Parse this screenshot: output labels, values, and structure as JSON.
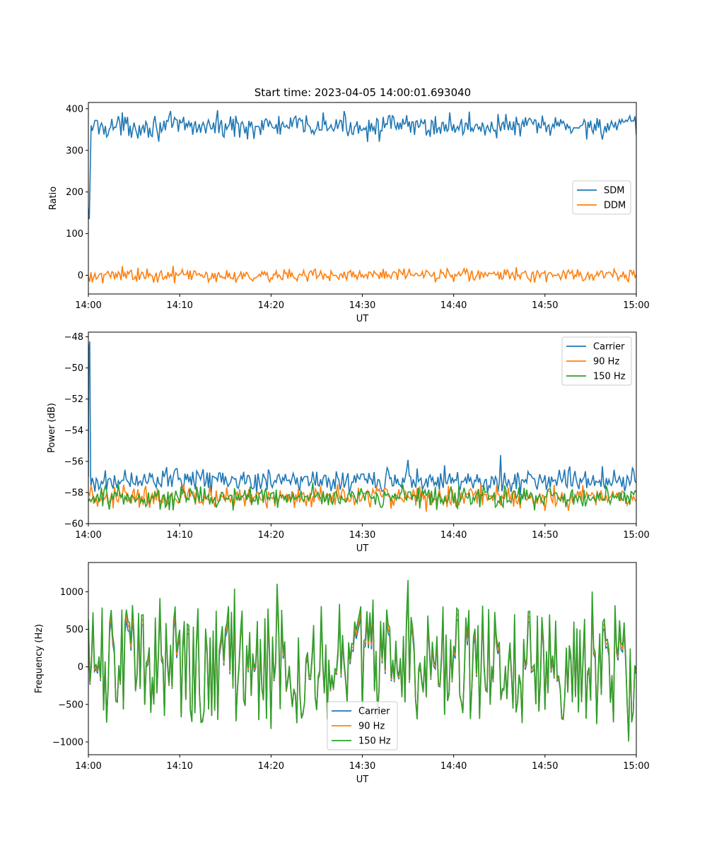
{
  "figure_title": "Start time: 2023-04-05 14:00:01.693040",
  "chart_data": [
    {
      "type": "line",
      "title": "Start time: 2023-04-05 14:00:01.693040",
      "xlabel": "UT",
      "ylabel": "Ratio",
      "xlim_minutes": [
        0,
        60
      ],
      "ylim": [
        -45,
        415
      ],
      "xticks": [
        {
          "value": 0,
          "label": "14:00"
        },
        {
          "value": 10,
          "label": "14:10"
        },
        {
          "value": 20,
          "label": "14:20"
        },
        {
          "value": 30,
          "label": "14:30"
        },
        {
          "value": 40,
          "label": "14:40"
        },
        {
          "value": 50,
          "label": "14:50"
        },
        {
          "value": 60,
          "label": "15:00"
        }
      ],
      "yticks": [
        {
          "value": 0,
          "label": "0"
        },
        {
          "value": 100,
          "label": "100"
        },
        {
          "value": 200,
          "label": "200"
        },
        {
          "value": 300,
          "label": "300"
        },
        {
          "value": 400,
          "label": "400"
        }
      ],
      "grid": false,
      "legend_position": "center-right",
      "series": [
        {
          "name": "SDM",
          "color": "#1f77b4",
          "profile": {
            "mean": 358,
            "amp": 14,
            "start": [
              [
                0,
                160
              ],
              [
                0.1,
                135
              ],
              [
                0.3,
                360
              ]
            ]
          }
        },
        {
          "name": "DDM",
          "color": "#ff7f0e",
          "profile": {
            "mean": 0,
            "amp": 8
          }
        }
      ]
    },
    {
      "type": "line",
      "title": "",
      "xlabel": "UT",
      "ylabel": "Power (dB)",
      "xlim_minutes": [
        0,
        60
      ],
      "ylim": [
        -60,
        -47.7
      ],
      "xticks": [
        {
          "value": 0,
          "label": "14:00"
        },
        {
          "value": 10,
          "label": "14:10"
        },
        {
          "value": 20,
          "label": "14:20"
        },
        {
          "value": 30,
          "label": "14:30"
        },
        {
          "value": 40,
          "label": "14:40"
        },
        {
          "value": 50,
          "label": "14:50"
        },
        {
          "value": 60,
          "label": "15:00"
        }
      ],
      "yticks": [
        {
          "value": -60,
          "label": "−60"
        },
        {
          "value": -58,
          "label": "−58"
        },
        {
          "value": -56,
          "label": "−56"
        },
        {
          "value": -54,
          "label": "−54"
        },
        {
          "value": -52,
          "label": "−52"
        },
        {
          "value": -50,
          "label": "−50"
        },
        {
          "value": -48,
          "label": "−48"
        }
      ],
      "grid": false,
      "legend_position": "top-right",
      "series": [
        {
          "name": "Carrier",
          "color": "#1f77b4",
          "profile": {
            "mean": -57.2,
            "amp": 0.35,
            "start": [
              [
                0,
                -57.0
              ],
              [
                0.05,
                -48.9
              ],
              [
                0.15,
                -48.3
              ],
              [
                0.25,
                -56.9
              ]
            ],
            "spikes": [
              [
                35,
                -55.9
              ],
              [
                45.2,
                -55.6
              ]
            ]
          }
        },
        {
          "name": "90 Hz",
          "color": "#ff7f0e",
          "profile": {
            "mean": -58.3,
            "amp": 0.35
          }
        },
        {
          "name": "150 Hz",
          "color": "#2ca02c",
          "profile": {
            "mean": -58.3,
            "amp": 0.35
          }
        }
      ]
    },
    {
      "type": "line",
      "title": "",
      "xlabel": "UT",
      "ylabel": "Frequency (Hz)",
      "xlim_minutes": [
        0,
        60
      ],
      "ylim": [
        -1170,
        1390
      ],
      "xticks": [
        {
          "value": 0,
          "label": "14:00"
        },
        {
          "value": 10,
          "label": "14:10"
        },
        {
          "value": 20,
          "label": "14:20"
        },
        {
          "value": 30,
          "label": "14:30"
        },
        {
          "value": 40,
          "label": "14:40"
        },
        {
          "value": 50,
          "label": "14:50"
        },
        {
          "value": 60,
          "label": "15:00"
        }
      ],
      "yticks": [
        {
          "value": -1000,
          "label": "−1000"
        },
        {
          "value": -500,
          "label": "−500"
        },
        {
          "value": 0,
          "label": "0"
        },
        {
          "value": 500,
          "label": "500"
        },
        {
          "value": 1000,
          "label": "1000"
        }
      ],
      "grid": false,
      "legend_position": "bottom-center",
      "series": [
        {
          "name": "Carrier",
          "color": "#1f77b4",
          "profile": {
            "mean": 0,
            "amp": 430,
            "offset": -30
          }
        },
        {
          "name": "90 Hz",
          "color": "#ff7f0e",
          "profile": {
            "mean": 0,
            "amp": 430,
            "offset": 0
          }
        },
        {
          "name": "150 Hz",
          "color": "#2ca02c",
          "profile": {
            "mean": 0,
            "amp": 430,
            "offset": 30
          }
        }
      ]
    }
  ]
}
